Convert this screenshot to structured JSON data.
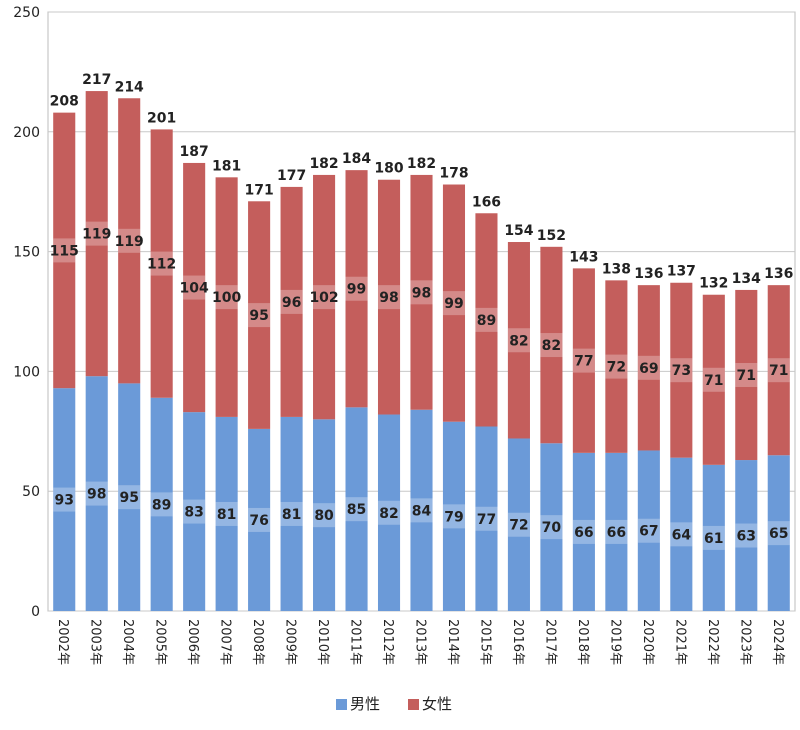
{
  "chart_data": {
    "type": "bar",
    "stacked": true,
    "title": "",
    "xlabel": "",
    "ylabel": "",
    "ylim": [
      0,
      250
    ],
    "yticks": [
      0,
      50,
      100,
      150,
      200,
      250
    ],
    "grid": true,
    "legend_position": "bottom",
    "categories": [
      "2002年",
      "2003年",
      "2004年",
      "2005年",
      "2006年",
      "2007年",
      "2008年",
      "2009年",
      "2010年",
      "2011年",
      "2012年",
      "2013年",
      "2014年",
      "2015年",
      "2016年",
      "2017年",
      "2018年",
      "2019年",
      "2020年",
      "2021年",
      "2022年",
      "2023年",
      "2024年"
    ],
    "series": [
      {
        "name": "男性",
        "color": "#6b9ad8",
        "values": [
          93,
          98,
          95,
          89,
          83,
          81,
          76,
          81,
          80,
          85,
          82,
          84,
          79,
          77,
          72,
          70,
          66,
          66,
          67,
          64,
          61,
          63,
          65
        ]
      },
      {
        "name": "女性",
        "color": "#c45e5c",
        "values": [
          115,
          119,
          119,
          112,
          104,
          100,
          95,
          96,
          102,
          99,
          98,
          98,
          99,
          89,
          82,
          82,
          77,
          72,
          69,
          73,
          71,
          71,
          71
        ]
      }
    ],
    "totals": [
      208,
      217,
      214,
      201,
      187,
      181,
      171,
      177,
      182,
      184,
      180,
      182,
      178,
      166,
      154,
      152,
      143,
      138,
      136,
      137,
      132,
      134,
      136
    ]
  }
}
